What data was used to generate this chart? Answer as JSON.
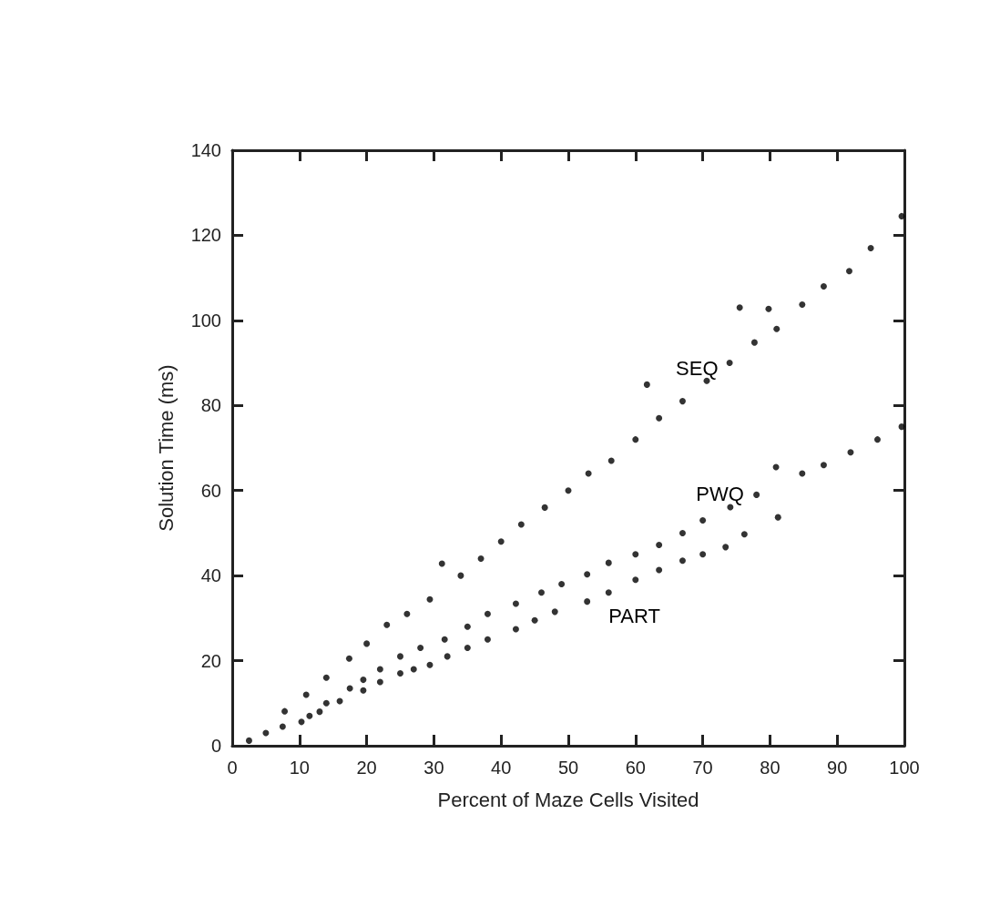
{
  "chart_data": {
    "type": "scatter",
    "xlabel": "Percent of Maze Cells Visited",
    "ylabel": "Solution Time (ms)",
    "xlim": [
      0,
      100
    ],
    "xticks": [
      0,
      10,
      20,
      30,
      40,
      50,
      60,
      70,
      80,
      90,
      100
    ],
    "ylim": [
      0,
      140
    ],
    "yticks": [
      0,
      20,
      40,
      60,
      80,
      100,
      120,
      140
    ],
    "grid": false,
    "legend": false,
    "marker": "circle",
    "series": [
      {
        "name": "SEQ",
        "color": "#000000",
        "x": [
          7.8,
          11,
          14,
          17.4,
          20,
          23,
          26,
          29.4,
          31.2,
          34,
          37,
          40,
          43,
          46.5,
          50,
          53,
          56.4,
          60,
          61.7,
          63.5,
          67,
          70.6,
          74,
          75.5,
          77.7,
          79.8,
          81,
          84.8,
          88,
          91.8,
          95,
          99.6
        ],
        "values": [
          8.1,
          12,
          16,
          20.5,
          24,
          28.4,
          31,
          34.4,
          42.8,
          40,
          44,
          48,
          52,
          56,
          60,
          64,
          67,
          72,
          84.9,
          77,
          81,
          85.8,
          90,
          103,
          94.8,
          102.7,
          98,
          103.7,
          108,
          111.6,
          117,
          124.5
        ]
      },
      {
        "name": "PWQ",
        "color": "#000000",
        "x": [
          11.5,
          14,
          17.5,
          19.5,
          22,
          25,
          28,
          31.6,
          35,
          38,
          42.2,
          46,
          49,
          52.8,
          56,
          60,
          63.5,
          67,
          70,
          74.1,
          78,
          80.9,
          84.8,
          88,
          92,
          96,
          99.6
        ],
        "values": [
          7,
          10,
          13.5,
          15.5,
          18,
          21,
          23,
          25,
          28,
          31,
          33.4,
          36,
          38,
          40.3,
          43,
          45,
          47.2,
          50,
          53,
          56.1,
          59,
          65.5,
          64,
          66,
          69,
          72,
          75
        ]
      },
      {
        "name": "PART",
        "color": "#000000",
        "x": [
          2.5,
          5,
          7.5,
          10.3,
          13,
          16,
          19.5,
          22,
          25,
          27,
          29.4,
          32,
          35,
          38,
          42.2,
          45,
          48,
          52.8,
          56,
          60,
          63.5,
          67,
          70,
          73.4,
          76.2,
          81.2
        ],
        "values": [
          1.2,
          3,
          4.5,
          5.6,
          8,
          10.5,
          13,
          15,
          17,
          18,
          19,
          21,
          23,
          25,
          27.4,
          29.5,
          31.5,
          33.9,
          36,
          39,
          41.3,
          43.5,
          45,
          46.7,
          49.7,
          53.7
        ]
      }
    ]
  }
}
